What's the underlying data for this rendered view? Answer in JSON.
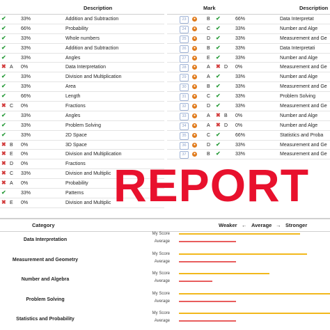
{
  "left_table": {
    "header": "Description",
    "rows": [
      {
        "result": "check",
        "letter": "",
        "percent": "33%",
        "desc": "Addition and Subtraction"
      },
      {
        "result": "check",
        "letter": "",
        "percent": "66%",
        "desc": "Probability"
      },
      {
        "result": "check",
        "letter": "",
        "percent": "33%",
        "desc": "Whole numbers"
      },
      {
        "result": "check",
        "letter": "",
        "percent": "33%",
        "desc": "Addition and Subtraction"
      },
      {
        "result": "check",
        "letter": "",
        "percent": "33%",
        "desc": "Angles"
      },
      {
        "result": "cross",
        "letter": "A",
        "percent": "0%",
        "desc": "Data Interpretation"
      },
      {
        "result": "check",
        "letter": "",
        "percent": "33%",
        "desc": "Division and Multiplication"
      },
      {
        "result": "check",
        "letter": "",
        "percent": "33%",
        "desc": "Area"
      },
      {
        "result": "check",
        "letter": "",
        "percent": "66%",
        "desc": "Length"
      },
      {
        "result": "cross",
        "letter": "C",
        "percent": "0%",
        "desc": "Fractions"
      },
      {
        "result": "check",
        "letter": "",
        "percent": "33%",
        "desc": "Angles"
      },
      {
        "result": "check",
        "letter": "",
        "percent": "33%",
        "desc": "Problem Solving"
      },
      {
        "result": "check",
        "letter": "",
        "percent": "33%",
        "desc": "2D Space"
      },
      {
        "result": "cross",
        "letter": "B",
        "percent": "0%",
        "desc": "3D Space"
      },
      {
        "result": "cross",
        "letter": "E",
        "percent": "0%",
        "desc": "Division and Multiplication"
      },
      {
        "result": "cross",
        "letter": "D",
        "percent": "0%",
        "desc": "Fractions"
      },
      {
        "result": "cross",
        "letter": "C",
        "percent": "33%",
        "desc": "Division and Multiplic"
      },
      {
        "result": "cross",
        "letter": "A",
        "percent": "0%",
        "desc": "Probability"
      },
      {
        "result": "check",
        "letter": "",
        "percent": "33%",
        "desc": "Patterns"
      },
      {
        "result": "cross",
        "letter": "E",
        "percent": "0%",
        "desc": "Division and Multiplic"
      }
    ]
  },
  "right_table": {
    "header_mark": "Mark",
    "header_desc": "Description",
    "rows": [
      {
        "num": "23",
        "letter": "B",
        "result": "check",
        "percent": "66%",
        "desc": "Data Interpretat"
      },
      {
        "num": "24",
        "letter": "C",
        "result": "check",
        "percent": "33%",
        "desc": "Number and Alge"
      },
      {
        "num": "25",
        "letter": "D",
        "result": "check",
        "percent": "33%",
        "desc": "Measurement and Ge"
      },
      {
        "num": "26",
        "letter": "B",
        "result": "check",
        "percent": "33%",
        "desc": "Data Interpretati"
      },
      {
        "num": "27",
        "letter": "E",
        "result": "check",
        "percent": "33%",
        "desc": "Number and Alge"
      },
      {
        "num": "28",
        "letter": "A",
        "result": "cross",
        "letter2": "D",
        "percent": "0%",
        "desc": "Measurement and Ge"
      },
      {
        "num": "29",
        "letter": "A",
        "result": "check",
        "percent": "33%",
        "desc": "Number and Alge"
      },
      {
        "num": "30",
        "letter": "B",
        "result": "check",
        "percent": "33%",
        "desc": "Measurement and Ge"
      },
      {
        "num": "31",
        "letter": "C",
        "result": "check",
        "percent": "33%",
        "desc": "Problem Solving"
      },
      {
        "num": "32",
        "letter": "D",
        "result": "check",
        "percent": "33%",
        "desc": "Measurement and Ge"
      },
      {
        "num": "33",
        "letter": "A",
        "result": "cross",
        "letter2": "B",
        "percent": "0%",
        "desc": "Number and Alge"
      },
      {
        "num": "34",
        "letter": "A",
        "result": "cross",
        "letter2": "D",
        "percent": "0%",
        "desc": "Number and Alge"
      },
      {
        "num": "35",
        "letter": "C",
        "result": "check",
        "percent": "66%",
        "desc": "Statistics and Proba"
      },
      {
        "num": "36",
        "letter": "D",
        "result": "check",
        "percent": "33%",
        "desc": "Measurement and Ge"
      },
      {
        "num": "37",
        "letter": "B",
        "result": "check",
        "percent": "33%",
        "desc": "Measurement and Ge"
      }
    ]
  },
  "watermark": "REPORT",
  "category_header": {
    "category": "Category",
    "weaker": "Weaker",
    "left_arrow": "←",
    "average": "Average",
    "right_arrow": "→",
    "stronger": "Stronger"
  },
  "labels": {
    "my_score": "My Score",
    "average": "Average"
  },
  "categories": [
    {
      "name": "Data Interpretation",
      "my_score": 0.8,
      "average": 0.38
    },
    {
      "name": "Measurement and Geometry",
      "my_score": 0.85,
      "average": 0.38
    },
    {
      "name": "Number and Algebra",
      "my_score": 0.6,
      "average": 0.22
    },
    {
      "name": "Problem Solving",
      "my_score": 1.0,
      "average": 0.38
    },
    {
      "name": "Statistics and Probability",
      "my_score": 1.0,
      "average": 0.38
    }
  ],
  "colors": {
    "check": "#2e9e3e",
    "cross": "#d23a3a",
    "my_score_bar": "#f2b81c",
    "average_bar": "#e85d5d",
    "watermark": "#e8112d"
  }
}
